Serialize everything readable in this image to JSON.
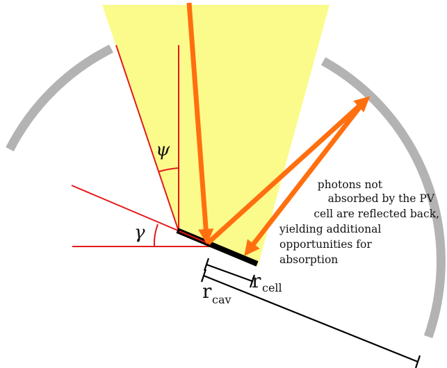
{
  "labels": {
    "psi": "ψ",
    "gamma": "γ",
    "r_cell_main": "r",
    "r_cell_sub": "cell",
    "r_cav_main": "r",
    "r_cav_sub": "cav"
  },
  "annotation": {
    "lines": [
      "photons not",
      "absorbed by the PV",
      "cell are reflected back,",
      "yielding additional",
      "opportunities for",
      "absorption"
    ]
  },
  "colors": {
    "light_cone": "#fbfb8c",
    "cavity_wall": "#b3b3b3",
    "ray": "#ff6f0f",
    "angle_lines": "#e31919",
    "cell": "#000000",
    "dimension_lines": "#000000"
  }
}
